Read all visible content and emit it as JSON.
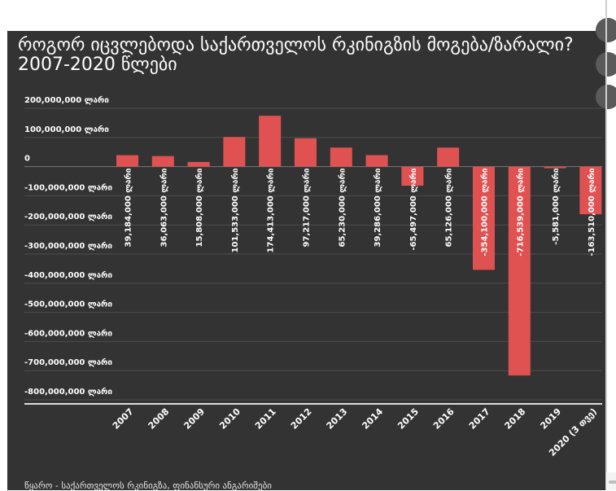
{
  "chart_data": {
    "type": "bar",
    "title": "როგორ იცვლებოდა საქართველოს რკინიგზის მოგება/ზარალი? 2007-2020 წლები",
    "source": "წყარო - საქართველოს რკინიგზა, ფინანსური ანგარიშები",
    "categories": [
      "2007",
      "2008",
      "2009",
      "2010",
      "2011",
      "2012",
      "2013",
      "2014",
      "2015",
      "2016",
      "2017",
      "2018",
      "2019",
      "2020 (3 თვე)"
    ],
    "values": [
      39184000,
      36063000,
      15808000,
      101533000,
      174413000,
      97217000,
      65230000,
      39286000,
      -65497000,
      65126000,
      -354100000,
      -716539000,
      -5581000,
      -163510000
    ],
    "data_labels": [
      "39,184,000 ლარი",
      "36,063,000 ლარი",
      "15,808,000 ლარი",
      "101,533,000 ლარი",
      "174,413,000 ლარი",
      "97,217,000 ლარი",
      "65,230,000 ლარი",
      "39,286,000 ლარი",
      "-65,497,000 ლარი",
      "65,126,000 ლარი",
      "-354,100,000 ლარი",
      "-716,539,000 ლარი",
      "-5,581,000 ლარი",
      "-163,510,000 ლარი"
    ],
    "y_ticks": [
      200000000,
      100000000,
      0,
      -100000000,
      -200000000,
      -300000000,
      -400000000,
      -500000000,
      -600000000,
      -700000000,
      -800000000
    ],
    "y_tick_labels": [
      "200,000,000 ლარი",
      "100,000,000 ლარი",
      "0",
      "-100,000,000 ლარი",
      "-200,000,000 ლარი",
      "-300,000,000 ლარი",
      "-400,000,000 ლარი",
      "-500,000,000 ლარი",
      "-600,000,000 ლარი",
      "-700,000,000 ლარი",
      "-800,000,000 ლარი"
    ],
    "ylim": [
      -800000000,
      200000000
    ],
    "grid": true,
    "colors": {
      "bar": "#e05252",
      "background": "#333333",
      "text": "#ffffff",
      "grid": "#4d4d4d"
    }
  }
}
